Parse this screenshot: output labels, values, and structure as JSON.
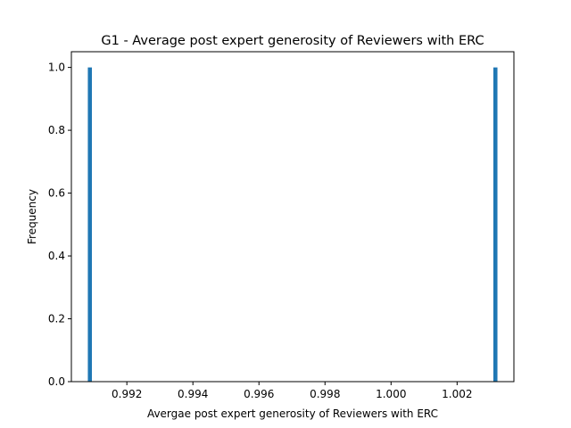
{
  "chart_data": {
    "type": "bar",
    "title": "G1 - Average post expert generosity of Reviewers with ERC",
    "xlabel": "Avergae post expert generosity of Reviewers with ERC",
    "ylabel": "Frequency",
    "xlim": [
      0.99032,
      1.00372
    ],
    "ylim": [
      0,
      1.05
    ],
    "bin_width": 0.000123,
    "bars": [
      {
        "x": 0.99088,
        "height": 1
      },
      {
        "x": 1.00316,
        "height": 1
      }
    ],
    "xticks": [
      {
        "value": 0.992,
        "label": "0.992"
      },
      {
        "value": 0.994,
        "label": "0.994"
      },
      {
        "value": 0.996,
        "label": "0.996"
      },
      {
        "value": 0.998,
        "label": "0.998"
      },
      {
        "value": 1.0,
        "label": "1.000"
      },
      {
        "value": 1.002,
        "label": "1.002"
      }
    ],
    "yticks": [
      {
        "value": 0.0,
        "label": "0.0"
      },
      {
        "value": 0.2,
        "label": "0.2"
      },
      {
        "value": 0.4,
        "label": "0.4"
      },
      {
        "value": 0.6,
        "label": "0.6"
      },
      {
        "value": 0.8,
        "label": "0.8"
      },
      {
        "value": 1.0,
        "label": "1.0"
      }
    ],
    "bar_color": "#1f77b4",
    "grid": false,
    "legend": "none"
  }
}
